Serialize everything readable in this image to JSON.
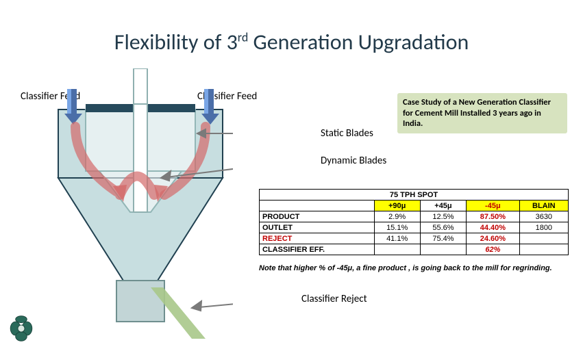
{
  "title_html": "Flexibility of 3<sup>rd</sup> Generation Upgradation",
  "labels": {
    "feed_left": "Classifier Feed",
    "feed_right": "Classifier Feed",
    "static": "Static Blades",
    "dynamic": "Dynamic Blades",
    "reject": "Classifier Reject"
  },
  "casebox": "Case Study of a New Generation Classifier for Cement Mill Installed 3 years ago in India.",
  "note": "Note that higher % of -45μ, a fine product , is going back to the mill for regrinding.",
  "table": {
    "title": "75 TPH SPOT",
    "columns": [
      "",
      "+90μ",
      "+45μ",
      "-45μ",
      "BLAIN"
    ],
    "col_hl": [
      false,
      true,
      false,
      true,
      true
    ],
    "col_red": [
      false,
      false,
      false,
      true,
      false
    ],
    "rows": [
      {
        "hdr": "PRODUCT",
        "hdr_red": false,
        "cells": [
          "2.9%",
          "12.5%",
          "87.50%",
          "3630"
        ]
      },
      {
        "hdr": "OUTLET",
        "hdr_red": false,
        "cells": [
          "15.1%",
          "55.6%",
          "44.40%",
          "1800"
        ]
      },
      {
        "hdr": "REJECT",
        "hdr_red": true,
        "cells": [
          "41.1%",
          "75.4%",
          "24.60%",
          ""
        ]
      },
      {
        "hdr": "CLASSIFIER EFF.",
        "hdr_red": false,
        "cells": [
          "",
          "",
          "62%",
          ""
        ],
        "bold_col": 2
      }
    ]
  },
  "diagram": {
    "outer_bucket_fill": "#c7dee0",
    "outer_bucket_stroke": "#204050",
    "top_cap_fill": "#264a5c",
    "inner_tube_fill": "#ffffff",
    "inner_tube_stroke": "#8fb0b0",
    "reject_box_fill": "#c2d5d6",
    "arrow_red": "#d46a6a",
    "arrow_gray": "#7a7a7a",
    "feed_blue_light": "#7aa6e6",
    "feed_blue_dark": "#4b6ea8",
    "reject_green": "#a8c88a"
  },
  "colors": {
    "header_band": "#223a4a",
    "title_text": "#223a4a",
    "casebox_bg": "#d7e3bf",
    "hl_yellow": "#ffff00",
    "txt_red": "#c00000"
  }
}
